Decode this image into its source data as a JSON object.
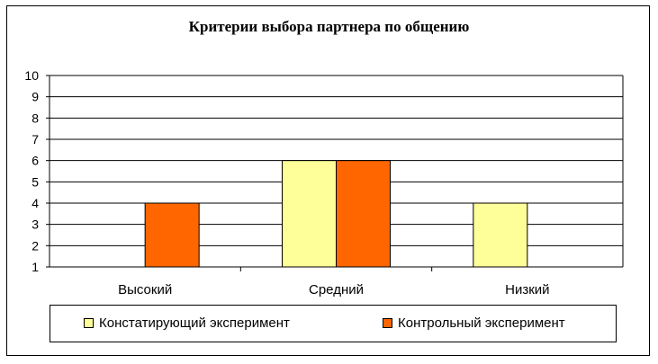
{
  "chart_data": {
    "type": "bar",
    "title": "Критерии выбора партнера по общению",
    "categories": [
      "Высокий",
      "Средний",
      "Низкий"
    ],
    "series": [
      {
        "name": "Констатирующий эксперимент",
        "color": "#FFFF99",
        "values": [
          null,
          6,
          4
        ]
      },
      {
        "name": "Контрольный эксперимент",
        "color": "#FF6600",
        "values": [
          4,
          6,
          null
        ]
      }
    ],
    "y_ticks": [
      "1",
      "2",
      "3",
      "4",
      "5",
      "6",
      "7",
      "8",
      "9",
      "10"
    ],
    "ylim": [
      1,
      10
    ],
    "grid": true,
    "legend_position": "bottom"
  }
}
